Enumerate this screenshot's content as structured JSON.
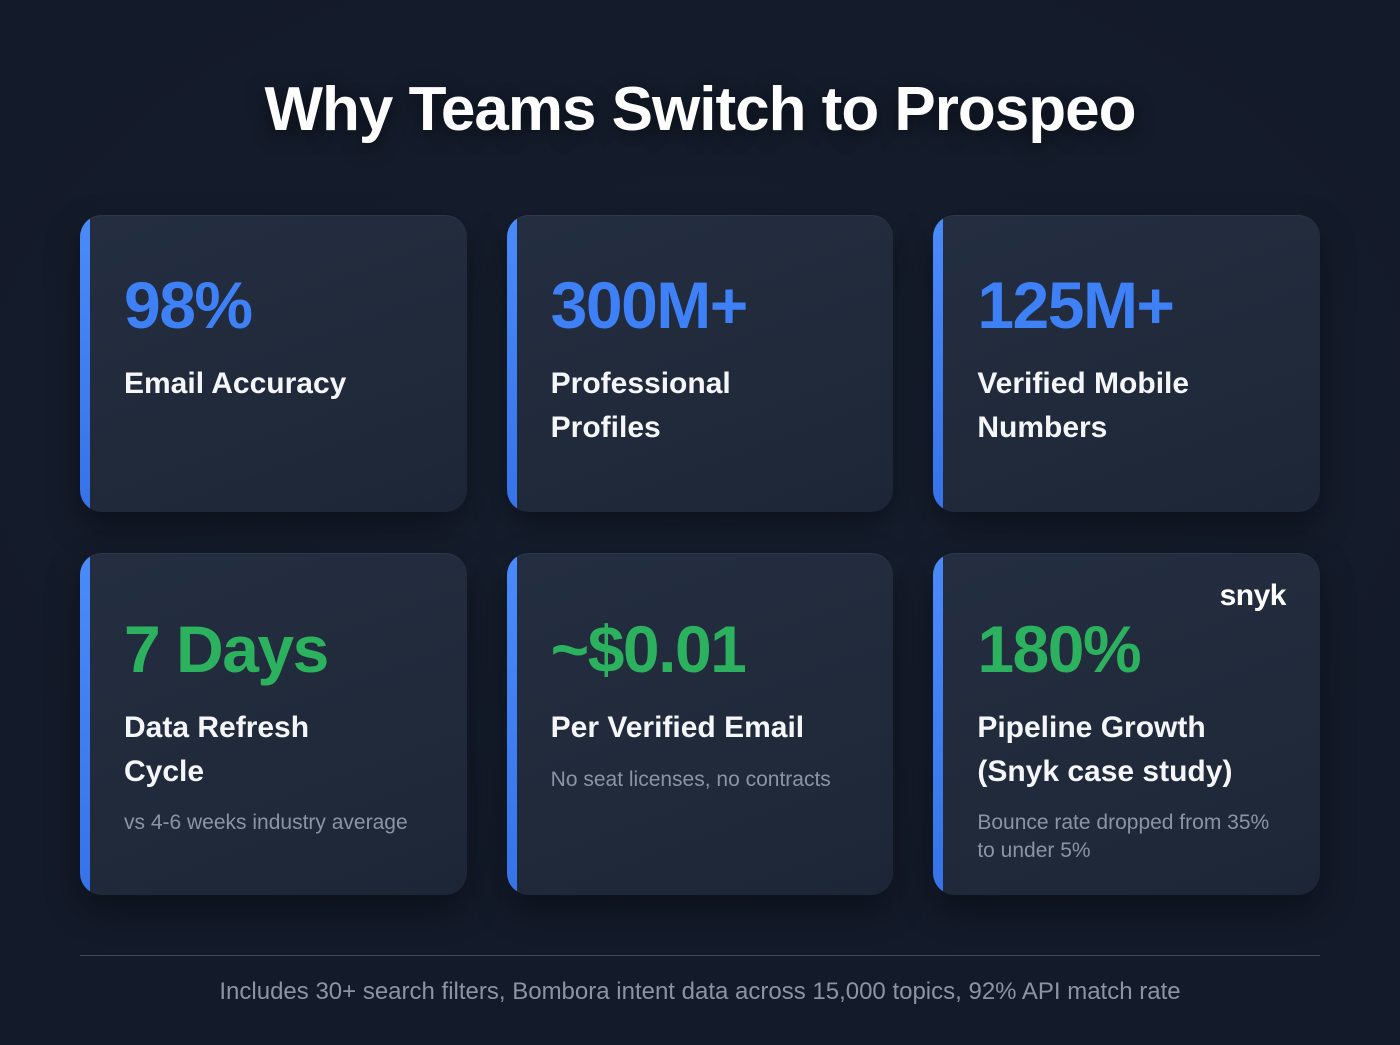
{
  "title": "Why Teams Switch to Prospeo",
  "colors": {
    "accent_blue": "#3e80f6",
    "accent_green": "#2cb15e",
    "background": "#131a29",
    "card_background": "#212b3d"
  },
  "cards": [
    {
      "value": "98%",
      "color": "blue",
      "label": "Email Accuracy"
    },
    {
      "value": "300M+",
      "color": "blue",
      "label": "Professional Profiles"
    },
    {
      "value": "125M+",
      "color": "blue",
      "label": "Verified Mobile Numbers"
    },
    {
      "value": "7 Days",
      "color": "green",
      "label": "Data Refresh Cycle",
      "subtext": "vs 4-6 weeks industry average"
    },
    {
      "value": "~$0.01",
      "color": "green",
      "label": "Per Verified Email",
      "subtext": "No seat licenses, no contracts"
    },
    {
      "value": "180%",
      "color": "green",
      "label": "Pipeline Growth (Snyk case study)",
      "subtext": "Bounce rate dropped from 35% to under 5%",
      "badge": "snyk"
    }
  ],
  "footer": "Includes 30+ search filters, Bombora intent data across 15,000 topics, 92% API match rate"
}
